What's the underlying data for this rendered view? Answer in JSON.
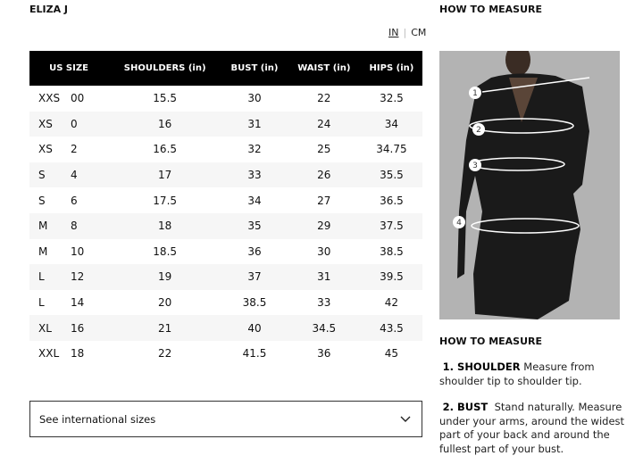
{
  "brand": "ELIZA J",
  "units": {
    "in": "IN",
    "cm": "CM",
    "selected": "IN"
  },
  "table": {
    "headers": [
      "US SIZE",
      "SHOULDERS (in)",
      "BUST (in)",
      "WAIST (in)",
      "HIPS (in)"
    ],
    "rows": [
      [
        "XXS",
        "00",
        "15.5",
        "30",
        "22",
        "32.5"
      ],
      [
        "XS",
        "0",
        "16",
        "31",
        "24",
        "34"
      ],
      [
        "XS",
        "2",
        "16.5",
        "32",
        "25",
        "34.75"
      ],
      [
        "S",
        "4",
        "17",
        "33",
        "26",
        "35.5"
      ],
      [
        "S",
        "6",
        "17.5",
        "34",
        "27",
        "36.5"
      ],
      [
        "M",
        "8",
        "18",
        "35",
        "29",
        "37.5"
      ],
      [
        "M",
        "10",
        "18.5",
        "36",
        "30",
        "38.5"
      ],
      [
        "L",
        "12",
        "19",
        "37",
        "31",
        "39.5"
      ],
      [
        "L",
        "14",
        "20",
        "38.5",
        "33",
        "42"
      ],
      [
        "XL",
        "16",
        "21",
        "40",
        "34.5",
        "43.5"
      ],
      [
        "XXL",
        "18",
        "22",
        "41.5",
        "36",
        "45"
      ]
    ]
  },
  "international": {
    "label": "See international sizes",
    "icon": "chevron-down-icon"
  },
  "how_to_measure": {
    "title_top": "HOW TO MEASURE",
    "title": "HOW TO MEASURE",
    "markers": [
      "1",
      "2",
      "3",
      "4"
    ],
    "steps": [
      {
        "label": "1. SHOULDER",
        "text": "Measure from shoulder tip to shoulder tip."
      },
      {
        "label": "2. BUST",
        "text": "Stand naturally. Measure under your arms, around the widest part of your back and around the fullest part of your bust."
      }
    ]
  }
}
